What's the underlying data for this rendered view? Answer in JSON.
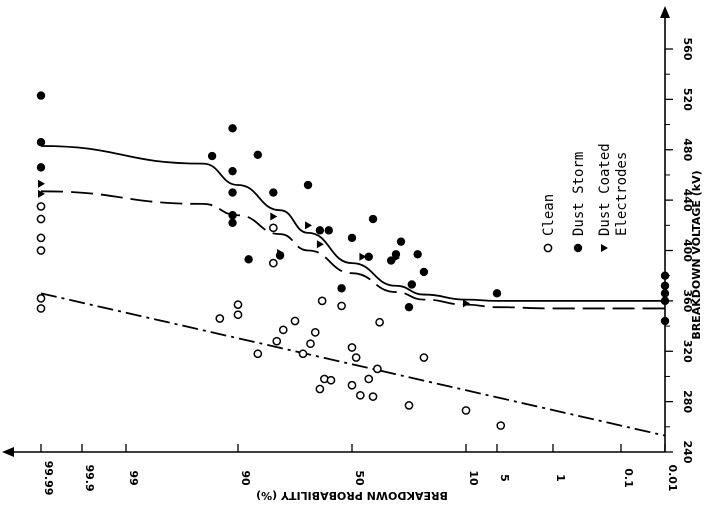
{
  "chart_data": {
    "type": "scatter",
    "orientation": "rotated 90 degrees clockwise (probability axis along bottom, voltage axis along right side)",
    "x_axis": {
      "label": "BREAKDOWN PROBABILITY (%)",
      "scale": "normal probability",
      "ticks": [
        "99.99",
        "99.9",
        "99",
        "90",
        "50",
        "10",
        "5",
        "1",
        "0.1",
        "0.01"
      ],
      "direction": "decreasing left to right"
    },
    "y_axis": {
      "label": "BREAKDOWN VOLTAGE (kV)",
      "ticks": [
        "240",
        "280",
        "320",
        "360",
        "400",
        "440",
        "480",
        "520",
        "560"
      ],
      "range": [
        240,
        575
      ],
      "direction": "increasing bottom to top"
    },
    "legend": {
      "placement": "right",
      "entries": [
        {
          "label": "Clean",
          "marker": "open circle"
        },
        {
          "label": "Dust Storm",
          "marker": "filled circle"
        },
        {
          "label": "Dust Coated Electrodes",
          "marker": "filled triangle"
        }
      ]
    },
    "series": [
      {
        "name": "Clean",
        "marker": "open-circle",
        "points": [
          [
            99.99,
            354
          ],
          [
            99.99,
            362
          ],
          [
            99.99,
            400
          ],
          [
            99.99,
            410
          ],
          [
            99.99,
            425
          ],
          [
            99.99,
            435
          ],
          [
            93,
            346
          ],
          [
            90,
            349
          ],
          [
            90,
            357
          ],
          [
            86,
            318
          ],
          [
            82,
            390
          ],
          [
            82,
            418
          ],
          [
            81,
            328
          ],
          [
            79,
            337
          ],
          [
            75,
            344
          ],
          [
            72,
            318
          ],
          [
            69,
            326
          ],
          [
            67,
            335
          ],
          [
            65,
            290
          ],
          [
            64,
            360
          ],
          [
            63,
            298
          ],
          [
            60,
            297
          ],
          [
            55,
            356
          ],
          [
            50,
            293
          ],
          [
            50,
            323
          ],
          [
            48,
            315
          ],
          [
            46,
            285
          ],
          [
            42,
            298
          ],
          [
            40,
            284
          ],
          [
            38,
            306
          ],
          [
            37,
            343
          ],
          [
            25,
            277
          ],
          [
            20,
            315
          ],
          [
            10,
            273
          ],
          [
            4.5,
            261
          ]
        ]
      },
      {
        "name": "Dust Storm",
        "marker": "filled-circle",
        "points": [
          [
            99.99,
            466
          ],
          [
            99.99,
            486
          ],
          [
            99.99,
            523
          ],
          [
            94,
            475
          ],
          [
            91,
            422
          ],
          [
            91,
            428
          ],
          [
            91,
            446
          ],
          [
            91,
            463
          ],
          [
            91,
            497
          ],
          [
            88,
            393
          ],
          [
            86,
            476
          ],
          [
            82,
            446
          ],
          [
            80,
            396
          ],
          [
            70,
            452
          ],
          [
            65,
            416
          ],
          [
            61,
            416
          ],
          [
            55,
            370
          ],
          [
            50,
            410
          ],
          [
            42,
            395
          ],
          [
            40,
            425
          ],
          [
            32,
            392
          ],
          [
            30,
            397
          ],
          [
            28,
            407
          ],
          [
            25,
            355
          ],
          [
            24,
            373
          ],
          [
            22,
            397
          ],
          [
            20,
            383
          ],
          [
            5,
            366
          ],
          [
            0.01,
            344
          ],
          [
            0.01,
            360
          ],
          [
            0.01,
            366
          ],
          [
            0.01,
            372
          ],
          [
            0.01,
            380
          ]
        ]
      },
      {
        "name": "Dust Coated Electrodes",
        "marker": "filled-triangle",
        "points": [
          [
            99.99,
            445
          ],
          [
            99.99,
            453
          ],
          [
            82,
            427
          ],
          [
            80,
            398
          ],
          [
            70,
            420
          ],
          [
            65,
            405
          ],
          [
            45,
            395
          ],
          [
            30,
            394
          ],
          [
            10,
            358
          ]
        ]
      }
    ],
    "fit_lines": [
      {
        "series": "Dust Storm",
        "style": "solid",
        "points": [
          [
            99.99,
            483
          ],
          [
            95,
            469
          ],
          [
            90,
            452
          ],
          [
            80,
            432
          ],
          [
            70,
            414
          ],
          [
            50,
            390
          ],
          [
            30,
            372
          ],
          [
            20,
            365
          ],
          [
            10,
            361
          ],
          [
            5,
            360
          ],
          [
            1,
            360
          ],
          [
            0.01,
            360
          ]
        ]
      },
      {
        "series": "Dust Coated Electrodes",
        "style": "dashed",
        "points": [
          [
            99.99,
            447
          ],
          [
            95,
            437
          ],
          [
            90,
            428
          ],
          [
            80,
            413
          ],
          [
            70,
            400
          ],
          [
            50,
            382
          ],
          [
            30,
            367
          ],
          [
            20,
            361
          ],
          [
            10,
            357
          ],
          [
            5,
            355
          ],
          [
            1,
            354
          ],
          [
            0.01,
            354
          ]
        ]
      },
      {
        "series": "Clean",
        "style": "dash-dot",
        "points": [
          [
            99.99,
            366
          ],
          [
            0.01,
            253
          ]
        ]
      }
    ]
  }
}
